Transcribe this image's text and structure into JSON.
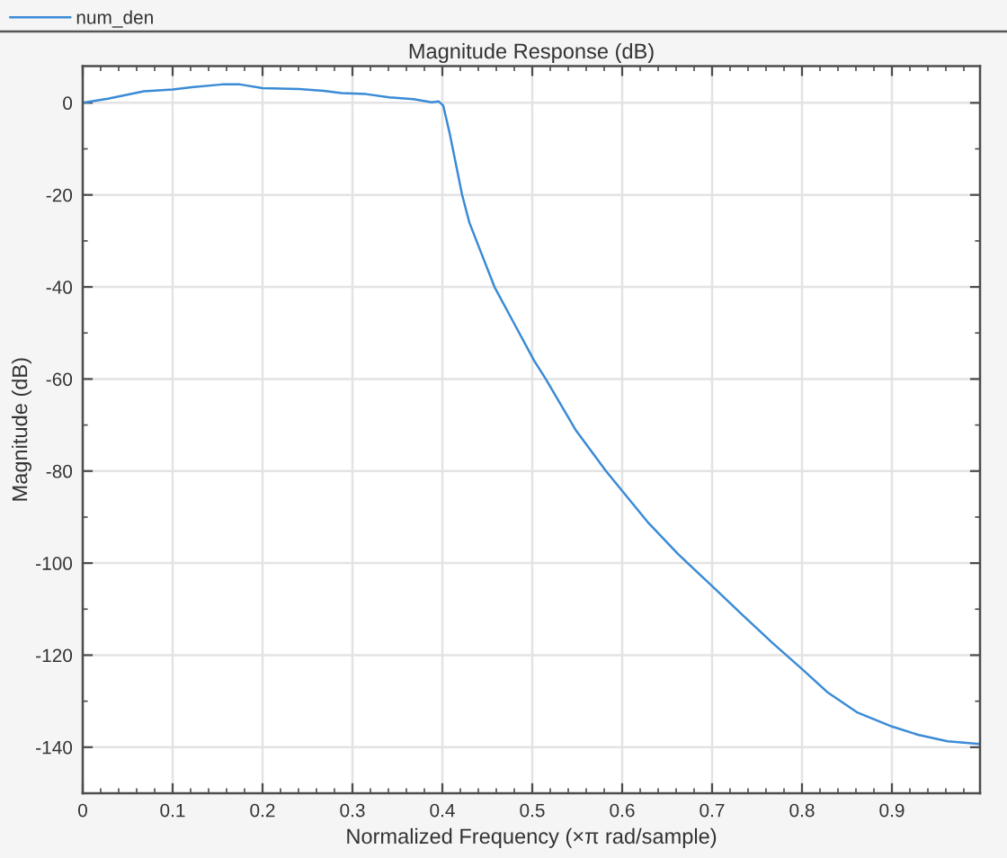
{
  "chart_data": {
    "type": "line",
    "title": "Magnitude Response (dB)",
    "xlabel": "Normalized Frequency (×π rad/sample)",
    "ylabel": "Magnitude (dB)",
    "series": [
      {
        "name": "num_den",
        "color": "#3a8bd6",
        "x": [
          0,
          0.028,
          0.068,
          0.1,
          0.121,
          0.155,
          0.175,
          0.2,
          0.241,
          0.268,
          0.288,
          0.315,
          0.341,
          0.368,
          0.388,
          0.396,
          0.401,
          0.408,
          0.422,
          0.43,
          0.442,
          0.458,
          0.48,
          0.502,
          0.515,
          0.548,
          0.582,
          0.628,
          0.662,
          0.7,
          0.735,
          0.768,
          0.8,
          0.828,
          0.862,
          0.9,
          0.929,
          0.962,
          0.997
        ],
        "values": [
          0,
          0.9,
          2.5,
          2.9,
          3.4,
          4.0,
          4.0,
          3.2,
          3.0,
          2.6,
          2.1,
          1.9,
          1.2,
          0.8,
          0.1,
          0.3,
          -0.6,
          -6.5,
          -20,
          -26,
          -32,
          -40,
          -48,
          -56,
          -60,
          -71,
          -80,
          -91,
          -98,
          -105,
          -111.5,
          -117.5,
          -123,
          -128,
          -132.5,
          -135.5,
          -137.3,
          -138.7,
          -139.3
        ]
      }
    ],
    "xlim": [
      0,
      0.998
    ],
    "ylim": [
      -150,
      8
    ],
    "xticks": [
      0,
      0.1,
      0.2,
      0.3,
      0.4,
      0.5,
      0.6,
      0.7,
      0.8,
      0.9
    ],
    "yticks": [
      -140,
      -120,
      -100,
      -80,
      -60,
      -40,
      -20,
      0
    ],
    "grid": true,
    "legend": "top left",
    "line_style": "solid",
    "marker": "none"
  }
}
